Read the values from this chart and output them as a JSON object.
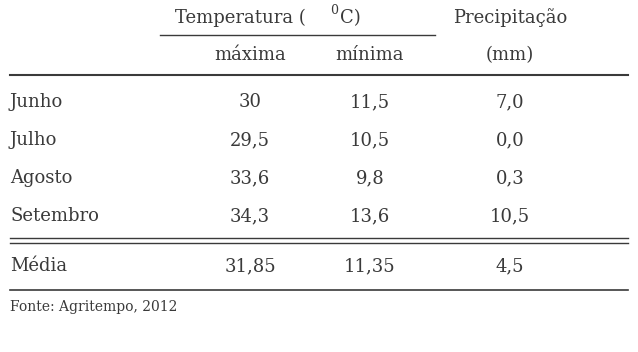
{
  "col_header1": "máxima",
  "col_header2": "mínima",
  "col_header3": "(mm)",
  "rows": [
    {
      "month": "Junho",
      "maxima": "30",
      "minima": "11,5",
      "precip": "7,0"
    },
    {
      "month": "Julho",
      "maxima": "29,5",
      "minima": "10,5",
      "precip": "0,0"
    },
    {
      "month": "Agosto",
      "maxima": "33,6",
      "minima": "9,8",
      "precip": "0,3"
    },
    {
      "month": "Setembro",
      "maxima": "34,3",
      "minima": "13,6",
      "precip": "10,5"
    }
  ],
  "avg_row": {
    "month": "Média",
    "maxima": "31,85",
    "minima": "11,35",
    "precip": "4,5"
  },
  "footer": "Fonte: Agritempo, 2012",
  "bg_color": "#ffffff",
  "text_color": "#3a3a3a",
  "font_size": 13
}
